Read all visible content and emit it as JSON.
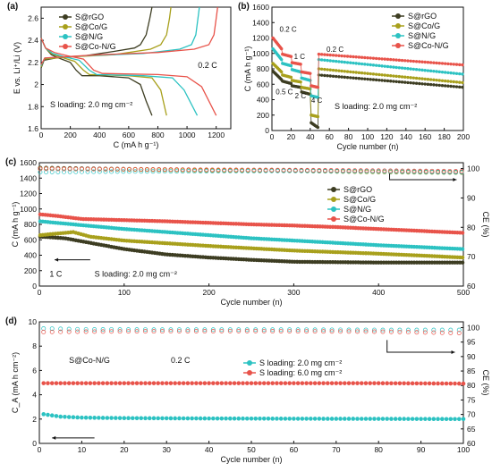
{
  "colors": {
    "rgo": "#3d3d22",
    "co": "#a8a01c",
    "n": "#2cc2c2",
    "con": "#e8534a"
  },
  "chart_data": [
    {
      "panel": "(a)",
      "type": "line",
      "xlabel": "C (mA h g⁻¹)",
      "ylabel": "E vs. Li⁺/Li (V)",
      "xlim": [
        0,
        1300
      ],
      "ylim": [
        1.6,
        2.7
      ],
      "xticks": [
        0,
        200,
        400,
        600,
        800,
        1000,
        1200
      ],
      "yticks": [
        1.6,
        1.8,
        2.0,
        2.2,
        2.4,
        2.6
      ],
      "legend": [
        "S@rGO",
        "S@Co/G",
        "S@N/G",
        "S@Co-N/G"
      ],
      "legend_position": "top-left",
      "annotations": [
        "0.2 C",
        "S loading: 2.0 mg cm⁻²"
      ],
      "series": [
        {
          "name": "S@rGO",
          "discharge": [
            [
              0,
              2.42
            ],
            [
              30,
              2.33
            ],
            [
              70,
              2.27
            ],
            [
              120,
              2.24
            ],
            [
              200,
              2.2
            ],
            [
              240,
              2.13
            ],
            [
              280,
              2.08
            ],
            [
              400,
              2.08
            ],
            [
              600,
              2.06
            ],
            [
              680,
              2.0
            ],
            [
              720,
              1.85
            ],
            [
              760,
              1.72
            ]
          ],
          "charge": [
            [
              0,
              2.15
            ],
            [
              20,
              2.22
            ],
            [
              100,
              2.24
            ],
            [
              300,
              2.26
            ],
            [
              500,
              2.3
            ],
            [
              640,
              2.33
            ],
            [
              680,
              2.36
            ],
            [
              720,
              2.45
            ],
            [
              745,
              2.6
            ],
            [
              760,
              2.7
            ]
          ]
        },
        {
          "name": "S@Co/G",
          "discharge": [
            [
              0,
              2.42
            ],
            [
              30,
              2.33
            ],
            [
              70,
              2.28
            ],
            [
              130,
              2.25
            ],
            [
              230,
              2.21
            ],
            [
              290,
              2.13
            ],
            [
              330,
              2.09
            ],
            [
              600,
              2.08
            ],
            [
              760,
              2.06
            ],
            [
              820,
              1.95
            ],
            [
              860,
              1.72
            ]
          ],
          "charge": [
            [
              0,
              2.16
            ],
            [
              20,
              2.23
            ],
            [
              200,
              2.25
            ],
            [
              500,
              2.27
            ],
            [
              750,
              2.32
            ],
            [
              820,
              2.36
            ],
            [
              860,
              2.45
            ],
            [
              880,
              2.6
            ],
            [
              890,
              2.7
            ]
          ]
        },
        {
          "name": "S@N/G",
          "discharge": [
            [
              0,
              2.42
            ],
            [
              30,
              2.33
            ],
            [
              80,
              2.28
            ],
            [
              160,
              2.25
            ],
            [
              260,
              2.22
            ],
            [
              330,
              2.13
            ],
            [
              380,
              2.09
            ],
            [
              700,
              2.08
            ],
            [
              900,
              2.06
            ],
            [
              980,
              1.95
            ],
            [
              1070,
              1.72
            ]
          ],
          "charge": [
            [
              0,
              2.17
            ],
            [
              25,
              2.24
            ],
            [
              300,
              2.26
            ],
            [
              700,
              2.28
            ],
            [
              950,
              2.32
            ],
            [
              1030,
              2.36
            ],
            [
              1060,
              2.45
            ],
            [
              1075,
              2.6
            ],
            [
              1085,
              2.7
            ]
          ]
        },
        {
          "name": "S@Co-N/G",
          "discharge": [
            [
              0,
              2.42
            ],
            [
              30,
              2.33
            ],
            [
              90,
              2.29
            ],
            [
              180,
              2.26
            ],
            [
              290,
              2.23
            ],
            [
              360,
              2.13
            ],
            [
              420,
              2.1
            ],
            [
              800,
              2.09
            ],
            [
              1000,
              2.07
            ],
            [
              1100,
              1.98
            ],
            [
              1200,
              1.72
            ]
          ],
          "charge": [
            [
              0,
              2.18
            ],
            [
              25,
              2.24
            ],
            [
              400,
              2.27
            ],
            [
              800,
              2.29
            ],
            [
              1050,
              2.32
            ],
            [
              1150,
              2.36
            ],
            [
              1185,
              2.45
            ],
            [
              1200,
              2.6
            ],
            [
              1210,
              2.7
            ]
          ]
        }
      ]
    },
    {
      "panel": "(b)",
      "type": "scatter",
      "xlabel": "Cycle number (n)",
      "ylabel": "C (mA h g⁻¹)",
      "xlim": [
        0,
        200
      ],
      "ylim": [
        0,
        1600
      ],
      "xticks": [
        0,
        20,
        40,
        60,
        80,
        100,
        120,
        140,
        160,
        180,
        200
      ],
      "yticks": [
        0,
        200,
        400,
        600,
        800,
        1000,
        1200,
        1400,
        1600
      ],
      "legend": [
        "S@rGO",
        "S@Co/G",
        "S@N/G",
        "S@Co-N/G"
      ],
      "legend_position": "top-right",
      "annotations": [
        "0.2 C",
        "0.5 C",
        "1 C",
        "2 C",
        "4 C",
        "0.2 C",
        "S loading: 2.0 mg cm⁻²"
      ],
      "rate_steps": [
        {
          "cycles": [
            1,
            10
          ],
          "values": {
            "S@rGO": [
              770,
              660
            ],
            "S@Co/G": [
              870,
              760
            ],
            "S@N/G": [
              1060,
              920
            ],
            "S@Co-N/G": [
              1200,
              1060
            ]
          }
        },
        {
          "cycles": [
            11,
            20
          ],
          "values": {
            "S@rGO": [
              640,
              610
            ],
            "S@Co/G": [
              720,
              690
            ],
            "S@N/G": [
              870,
              840
            ],
            "S@Co-N/G": [
              990,
              960
            ]
          }
        },
        {
          "cycles": [
            21,
            30
          ],
          "values": {
            "S@rGO": [
              580,
              560
            ],
            "S@Co/G": [
              650,
              630
            ],
            "S@N/G": [
              790,
              760
            ],
            "S@Co-N/G": [
              880,
              860
            ]
          }
        },
        {
          "cycles": [
            31,
            40
          ],
          "values": {
            "S@rGO": [
              500,
              470
            ],
            "S@Co/G": [
              560,
              540
            ],
            "S@N/G": [
              680,
              650
            ],
            "S@Co-N/G": [
              760,
              740
            ]
          }
        },
        {
          "cycles": [
            41,
            48
          ],
          "values": {
            "S@rGO": [
              100,
              40
            ],
            "S@Co/G": [
              200,
              180
            ],
            "S@N/G": [
              450,
              430
            ],
            "S@Co-N/G": [
              580,
              560
            ]
          }
        },
        {
          "cycles": [
            49,
            200
          ],
          "values": {
            "S@rGO": [
              720,
              560
            ],
            "S@Co/G": [
              800,
              620
            ],
            "S@N/G": [
              920,
              730
            ],
            "S@Co-N/G": [
              990,
              850
            ]
          }
        }
      ]
    },
    {
      "panel": "(c)",
      "type": "scatter",
      "xlabel": "Cycle number (n)",
      "ylabel": "C (mA h g⁻¹)",
      "ylabel_right": "CE (%)",
      "xlim": [
        0,
        500
      ],
      "ylim": [
        0,
        1600
      ],
      "ylim_right": [
        60,
        102
      ],
      "xticks": [
        0,
        100,
        200,
        300,
        400,
        500
      ],
      "yticks": [
        0,
        200,
        400,
        600,
        800,
        1000,
        1200,
        1400,
        1600
      ],
      "yticks_right": [
        60,
        70,
        80,
        90,
        100
      ],
      "legend": [
        "S@rGO",
        "S@Co/G",
        "S@N/G",
        "S@Co-N/G"
      ],
      "legend_position": "center-right",
      "annotations": [
        "1 C",
        "S loading: 2.0 mg cm⁻²"
      ],
      "capacity": [
        {
          "name": "S@rGO",
          "points": [
            [
              1,
              640
            ],
            [
              10,
              635
            ],
            [
              30,
              620
            ],
            [
              60,
              560
            ],
            [
              100,
              480
            ],
            [
              150,
              410
            ],
            [
              200,
              370
            ],
            [
              250,
              340
            ],
            [
              300,
              315
            ],
            [
              350,
              310
            ],
            [
              400,
              305
            ],
            [
              450,
              305
            ],
            [
              500,
              305
            ]
          ]
        },
        {
          "name": "S@Co/G",
          "points": [
            [
              1,
              660
            ],
            [
              20,
              680
            ],
            [
              40,
              700
            ],
            [
              60,
              640
            ],
            [
              100,
              590
            ],
            [
              150,
              555
            ],
            [
              200,
              520
            ],
            [
              250,
              490
            ],
            [
              300,
              460
            ],
            [
              350,
              440
            ],
            [
              400,
              420
            ],
            [
              450,
              395
            ],
            [
              500,
              370
            ]
          ]
        },
        {
          "name": "S@N/G",
          "points": [
            [
              1,
              840
            ],
            [
              20,
              820
            ],
            [
              50,
              790
            ],
            [
              100,
              740
            ],
            [
              150,
              700
            ],
            [
              200,
              660
            ],
            [
              250,
              620
            ],
            [
              300,
              590
            ],
            [
              350,
              560
            ],
            [
              400,
              530
            ],
            [
              450,
              505
            ],
            [
              500,
              480
            ]
          ]
        },
        {
          "name": "S@Co-N/G",
          "points": [
            [
              1,
              930
            ],
            [
              20,
              910
            ],
            [
              50,
              870
            ],
            [
              100,
              855
            ],
            [
              150,
              840
            ],
            [
              200,
              820
            ],
            [
              250,
              800
            ],
            [
              300,
              785
            ],
            [
              350,
              765
            ],
            [
              400,
              740
            ],
            [
              450,
              715
            ],
            [
              500,
              690
            ]
          ]
        }
      ],
      "ce": [
        {
          "name": "S@rGO",
          "points": [
            [
              1,
              100.2
            ],
            [
              100,
              99.8
            ],
            [
              200,
              99.4
            ],
            [
              300,
              99.3
            ],
            [
              400,
              99.0
            ],
            [
              500,
              98.8
            ]
          ]
        },
        {
          "name": "S@Co/G",
          "points": [
            [
              1,
              100.0
            ],
            [
              100,
              99.7
            ],
            [
              200,
              99.4
            ],
            [
              300,
              99.2
            ],
            [
              400,
              98.8
            ],
            [
              500,
              98.6
            ]
          ]
        },
        {
          "name": "S@N/G",
          "points": [
            [
              1,
              98.8
            ],
            [
              100,
              99.0
            ],
            [
              200,
              99.1
            ],
            [
              300,
              99.2
            ],
            [
              400,
              99.0
            ],
            [
              500,
              98.7
            ]
          ]
        },
        {
          "name": "S@Co-N/G",
          "points": [
            [
              1,
              99.9
            ],
            [
              100,
              99.8
            ],
            [
              200,
              99.6
            ],
            [
              300,
              99.5
            ],
            [
              400,
              99.3
            ],
            [
              500,
              99.1
            ]
          ]
        }
      ]
    },
    {
      "panel": "(d)",
      "type": "scatter",
      "xlabel": "Cycle number (n)",
      "ylabel": "C_A (mA h cm⁻²)",
      "ylabel_right": "CE (%)",
      "xlim": [
        0,
        100
      ],
      "ylim": [
        0,
        10
      ],
      "ylim_right": [
        60,
        102
      ],
      "xticks": [
        0,
        10,
        20,
        30,
        40,
        50,
        60,
        70,
        80,
        90,
        100
      ],
      "yticks": [
        0,
        2,
        4,
        6,
        8,
        10
      ],
      "yticks_right": [
        60,
        65,
        70,
        75,
        80,
        85,
        90,
        95,
        100
      ],
      "legend": [
        "S loading: 2.0 mg cm⁻²",
        "S loading: 6.0 mg cm⁻²"
      ],
      "legend_position": "center-right",
      "annotations": [
        "S@Co-N/G",
        "0.2 C"
      ],
      "capacity": [
        {
          "name": "S loading: 2.0 mg cm⁻²",
          "points": [
            [
              1,
              2.4
            ],
            [
              5,
              2.2
            ],
            [
              10,
              2.12
            ],
            [
              20,
              2.08
            ],
            [
              40,
              2.05
            ],
            [
              60,
              2.03
            ],
            [
              80,
              2.02
            ],
            [
              100,
              2.0
            ]
          ]
        },
        {
          "name": "S loading: 6.0 mg cm⁻²",
          "points": [
            [
              1,
              4.95
            ],
            [
              20,
              4.95
            ],
            [
              40,
              4.95
            ],
            [
              60,
              4.95
            ],
            [
              80,
              4.95
            ],
            [
              100,
              4.92
            ]
          ]
        }
      ],
      "ce": [
        {
          "name": "S loading: 2.0 mg cm⁻²",
          "points": [
            [
              1,
              99.7
            ],
            [
              10,
              99.4
            ],
            [
              30,
              99.3
            ],
            [
              60,
              99.3
            ],
            [
              80,
              99.2
            ],
            [
              100,
              99.2
            ]
          ]
        },
        {
          "name": "S loading: 6.0 mg cm⁻²",
          "points": [
            [
              1,
              98.5
            ],
            [
              20,
              98.7
            ],
            [
              50,
              98.8
            ],
            [
              80,
              98.6
            ],
            [
              100,
              98.1
            ]
          ]
        }
      ]
    }
  ]
}
